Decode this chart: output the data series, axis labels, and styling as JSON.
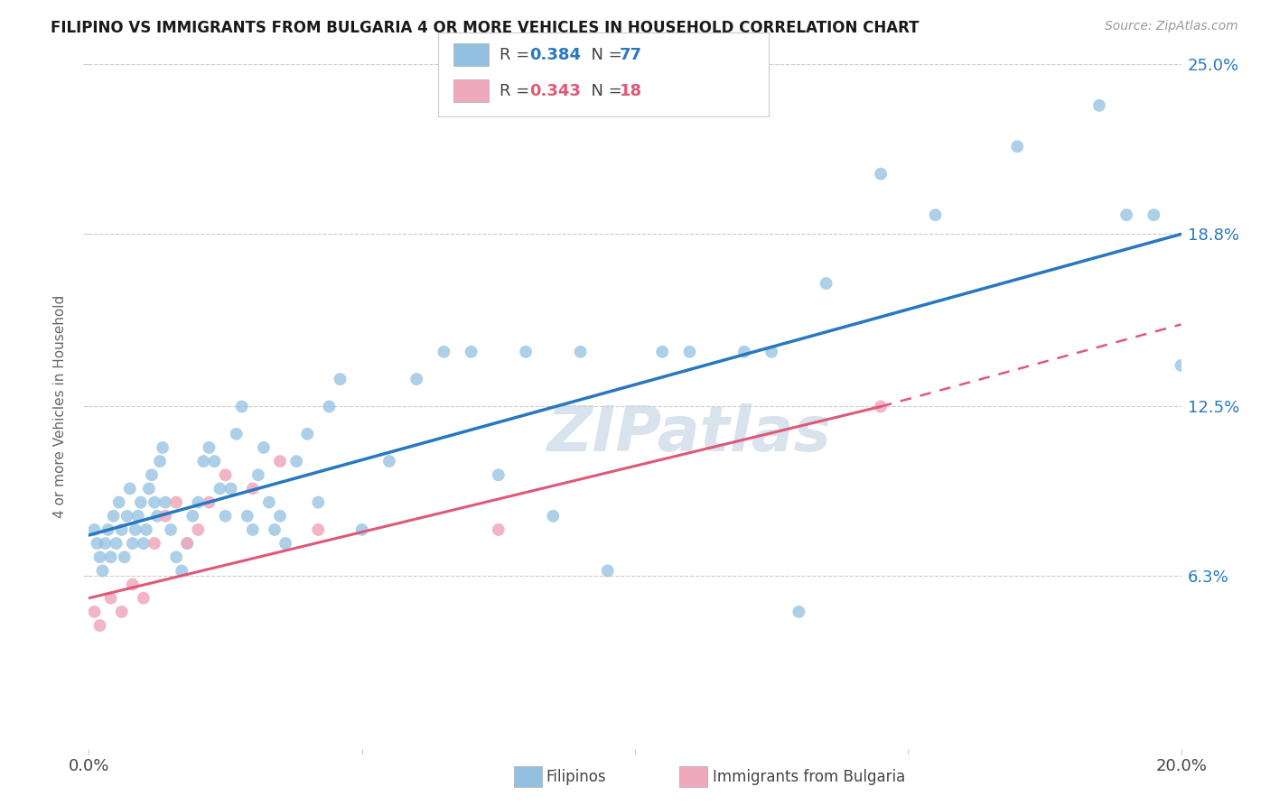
{
  "title": "FILIPINO VS IMMIGRANTS FROM BULGARIA 4 OR MORE VEHICLES IN HOUSEHOLD CORRELATION CHART",
  "source": "Source: ZipAtlas.com",
  "ylabel": "4 or more Vehicles in Household",
  "x_min": 0.0,
  "x_max": 20.0,
  "y_min": 0.0,
  "y_max": 25.0,
  "y_ticks": [
    6.3,
    12.5,
    18.8,
    25.0
  ],
  "x_ticks": [
    0.0,
    5.0,
    10.0,
    15.0,
    20.0
  ],
  "legend_1_label_r": "R = 0.384",
  "legend_1_label_n": "N = 77",
  "legend_2_label_r": "R = 0.343",
  "legend_2_label_n": "N = 18",
  "bottom_legend_1": "Filipinos",
  "bottom_legend_2": "Immigrants from Bulgaria",
  "blue_color": "#92c0e0",
  "pink_color": "#f0a8bc",
  "blue_line_color": "#2878c0",
  "pink_line_color": "#e05878",
  "blue_tick_color": "#2878c0",
  "watermark_color": "#c8d8e8",
  "fil_x": [
    0.1,
    0.15,
    0.2,
    0.25,
    0.3,
    0.35,
    0.4,
    0.45,
    0.5,
    0.55,
    0.6,
    0.65,
    0.7,
    0.75,
    0.8,
    0.85,
    0.9,
    0.95,
    1.0,
    1.05,
    1.1,
    1.15,
    1.2,
    1.25,
    1.3,
    1.35,
    1.4,
    1.5,
    1.6,
    1.7,
    1.8,
    1.9,
    2.0,
    2.1,
    2.2,
    2.3,
    2.4,
    2.5,
    2.6,
    2.7,
    2.8,
    2.9,
    3.0,
    3.1,
    3.2,
    3.3,
    3.4,
    3.5,
    3.6,
    3.8,
    4.0,
    4.2,
    4.4,
    4.6,
    5.0,
    5.5,
    6.0,
    6.5,
    7.0,
    7.5,
    8.0,
    8.5,
    9.0,
    9.5,
    10.5,
    11.0,
    12.0,
    12.5,
    13.5,
    14.5,
    15.5,
    17.0,
    18.5,
    19.0,
    19.5,
    20.0,
    13.0
  ],
  "fil_y": [
    8.0,
    7.5,
    7.0,
    6.5,
    7.5,
    8.0,
    7.0,
    8.5,
    7.5,
    9.0,
    8.0,
    7.0,
    8.5,
    9.5,
    7.5,
    8.0,
    8.5,
    9.0,
    7.5,
    8.0,
    9.5,
    10.0,
    9.0,
    8.5,
    10.5,
    11.0,
    9.0,
    8.0,
    7.0,
    6.5,
    7.5,
    8.5,
    9.0,
    10.5,
    11.0,
    10.5,
    9.5,
    8.5,
    9.5,
    11.5,
    12.5,
    8.5,
    8.0,
    10.0,
    11.0,
    9.0,
    8.0,
    8.5,
    7.5,
    10.5,
    11.5,
    9.0,
    12.5,
    13.5,
    8.0,
    10.5,
    13.5,
    14.5,
    14.5,
    10.0,
    14.5,
    8.5,
    14.5,
    6.5,
    14.5,
    14.5,
    14.5,
    14.5,
    17.0,
    21.0,
    19.5,
    22.0,
    23.5,
    19.5,
    19.5,
    14.0,
    5.0
  ],
  "bul_x": [
    0.1,
    0.2,
    0.4,
    0.6,
    0.8,
    1.0,
    1.2,
    1.4,
    1.6,
    1.8,
    2.0,
    2.2,
    2.5,
    3.0,
    3.5,
    4.2,
    7.5,
    14.5
  ],
  "bul_y": [
    5.0,
    4.5,
    5.5,
    5.0,
    6.0,
    5.5,
    7.5,
    8.5,
    9.0,
    7.5,
    8.0,
    9.0,
    10.0,
    9.5,
    10.5,
    8.0,
    8.0,
    12.5
  ],
  "blue_reg_x0": 0.0,
  "blue_reg_x1": 20.0,
  "blue_reg_y0": 7.8,
  "blue_reg_y1": 18.8,
  "pink_reg_x0": 0.0,
  "pink_reg_x1": 14.5,
  "pink_reg_y0": 5.5,
  "pink_reg_y1": 12.5,
  "pink_dash_x0": 14.5,
  "pink_dash_x1": 20.0,
  "pink_dash_y0": 12.5,
  "pink_dash_y1": 15.5
}
